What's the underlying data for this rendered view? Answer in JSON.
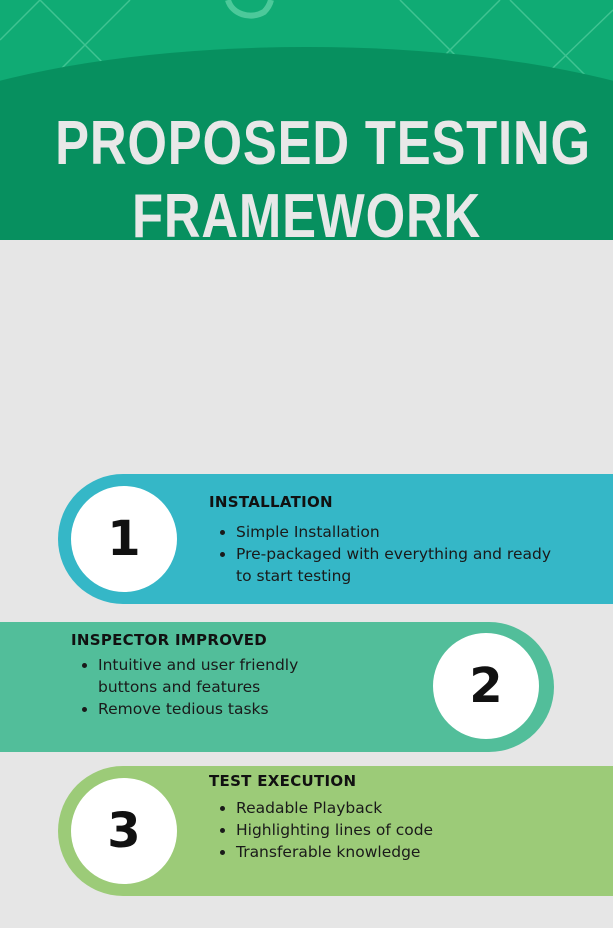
{
  "header": {
    "title_line_1": "PROPOSED TESTING",
    "title_line_2": "FRAMEWORK"
  },
  "colors": {
    "header_band": "#10ab74",
    "header_oval": "#07905f",
    "background": "#e6e6e6",
    "step1": "#35b7c7",
    "step2": "#52be9a",
    "step3": "#9ccb78"
  },
  "steps": [
    {
      "number": "1",
      "heading": "INSTALLATION",
      "bullets": [
        "Simple Installation",
        "Pre-packaged with everything and ready to start testing"
      ]
    },
    {
      "number": "2",
      "heading": "INSPECTOR IMPROVED",
      "bullets": [
        "Intuitive and user friendly buttons and features",
        "Remove tedious tasks"
      ]
    },
    {
      "number": "3",
      "heading": "TEST EXECUTION",
      "bullets": [
        "Readable Playback",
        "Highlighting lines of code",
        "Transferable knowledge"
      ]
    }
  ]
}
